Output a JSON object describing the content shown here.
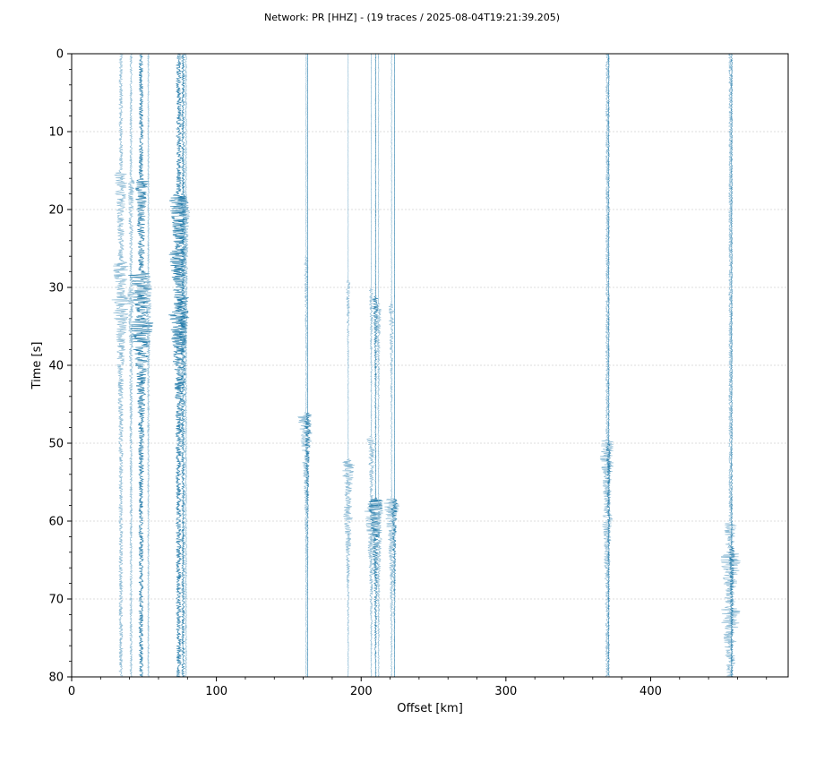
{
  "chart_data": {
    "type": "line",
    "title": "Network: PR [HHZ] - (19 traces / 2025-08-04T19:21:39.205)",
    "xlabel": "Offset [km]",
    "ylabel": "Time [s]",
    "xlim": [
      0,
      495
    ],
    "ylim": [
      80,
      0
    ],
    "xticks": [
      0,
      100,
      200,
      300,
      400
    ],
    "yticks": [
      0,
      10,
      20,
      30,
      40,
      50,
      60,
      70,
      80
    ],
    "grid": true,
    "colors": {
      "strong": "#1a74a5",
      "light": "#7fb3cf",
      "grid": "#d3d3d3",
      "axis": "#000000"
    },
    "series": [
      {
        "offset": 34,
        "shade": "light",
        "amp": 2.5,
        "events": [
          {
            "t": 15,
            "a": 8
          },
          {
            "t": 26.5,
            "a": 9
          },
          {
            "t": 31,
            "a": 7
          }
        ]
      },
      {
        "offset": 41,
        "shade": "light",
        "amp": 1.5,
        "events": [
          {
            "t": 16,
            "a": 4
          },
          {
            "t": 30,
            "a": 4
          }
        ]
      },
      {
        "offset": 48,
        "shade": "strong",
        "amp": 3,
        "events": [
          {
            "t": 16,
            "a": 8
          },
          {
            "t": 28,
            "a": 15
          },
          {
            "t": 34,
            "a": 10
          }
        ]
      },
      {
        "offset": 53,
        "shade": "light",
        "amp": 1,
        "events": [
          {
            "t": 29,
            "a": 5
          }
        ]
      },
      {
        "offset": 74,
        "shade": "strong",
        "amp": 3.5,
        "events": [
          {
            "t": 18,
            "a": 12
          },
          {
            "t": 25,
            "a": 8
          },
          {
            "t": 33,
            "a": 10
          }
        ]
      },
      {
        "offset": 77,
        "shade": "strong",
        "amp": 2,
        "events": [
          {
            "t": 18,
            "a": 8
          },
          {
            "t": 31,
            "a": 7
          }
        ]
      },
      {
        "offset": 79,
        "shade": "light",
        "amp": 1,
        "events": [
          {
            "t": 19,
            "a": 5
          }
        ]
      },
      {
        "offset": 162,
        "shade": "light",
        "amp": 0.5,
        "events": [
          {
            "t": 26,
            "a": 3
          },
          {
            "t": 46,
            "a": 13
          }
        ]
      },
      {
        "offset": 163,
        "shade": "strong",
        "amp": 0.3,
        "events": [
          {
            "t": 46,
            "a": 6
          }
        ]
      },
      {
        "offset": 191,
        "shade": "light",
        "amp": 0.3,
        "events": [
          {
            "t": 29,
            "a": 3
          },
          {
            "t": 52,
            "a": 10
          },
          {
            "t": 58,
            "a": 4
          }
        ]
      },
      {
        "offset": 207,
        "shade": "light",
        "amp": 0.5,
        "events": [
          {
            "t": 30,
            "a": 3
          },
          {
            "t": 49,
            "a": 6
          },
          {
            "t": 58,
            "a": 9
          }
        ]
      },
      {
        "offset": 210,
        "shade": "strong",
        "amp": 0.5,
        "events": [
          {
            "t": 31,
            "a": 4
          },
          {
            "t": 57,
            "a": 12
          }
        ]
      },
      {
        "offset": 212,
        "shade": "light",
        "amp": 0.5,
        "events": [
          {
            "t": 32,
            "a": 4
          },
          {
            "t": 58,
            "a": 8
          }
        ]
      },
      {
        "offset": 221,
        "shade": "light",
        "amp": 0.5,
        "events": [
          {
            "t": 32,
            "a": 4
          },
          {
            "t": 57,
            "a": 12
          }
        ]
      },
      {
        "offset": 223,
        "shade": "strong",
        "amp": 0.3,
        "events": [
          {
            "t": 57,
            "a": 5
          }
        ]
      },
      {
        "offset": 370,
        "shade": "light",
        "amp": 2,
        "events": [
          {
            "t": 49.5,
            "a": 12
          },
          {
            "t": 59,
            "a": 4
          }
        ]
      },
      {
        "offset": 371,
        "shade": "strong",
        "amp": 0.8,
        "events": [
          {
            "t": 50,
            "a": 3
          }
        ]
      },
      {
        "offset": 455,
        "shade": "light",
        "amp": 2,
        "events": [
          {
            "t": 60,
            "a": 8
          },
          {
            "t": 64,
            "a": 12
          },
          {
            "t": 71,
            "a": 10
          }
        ]
      },
      {
        "offset": 456,
        "shade": "strong",
        "amp": 0.8,
        "events": [
          {
            "t": 63,
            "a": 4
          }
        ]
      }
    ]
  }
}
